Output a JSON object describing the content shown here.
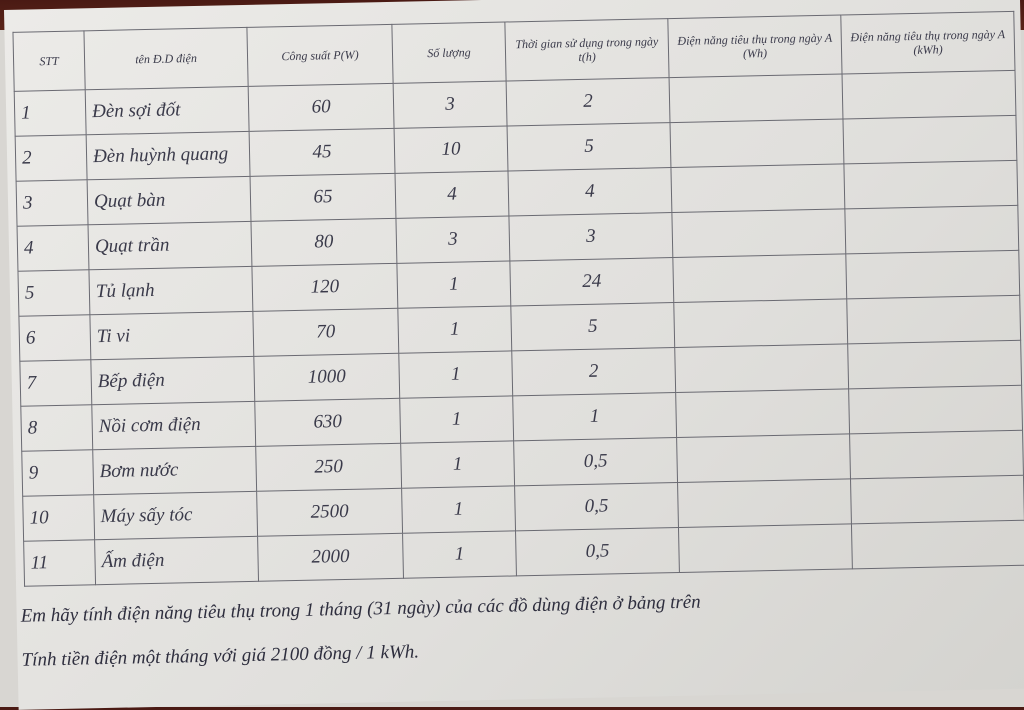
{
  "table": {
    "headers": [
      "STT",
      "tên Đ.D điện",
      "Công suất P(W)",
      "Số lượng",
      "Thời gian sử dụng trong ngày t(h)",
      "Điện năng tiêu thụ trong ngày A (Wh)",
      "Điện năng tiêu thụ trong ngày A (kWh)"
    ],
    "rows": [
      [
        "1",
        "Đèn sợi đốt",
        "60",
        "3",
        "2"
      ],
      [
        "2",
        "Đèn huỳnh quang",
        "45",
        "10",
        "5"
      ],
      [
        "3",
        "Quạt bàn",
        "65",
        "4",
        "4"
      ],
      [
        "4",
        "Quạt trần",
        "80",
        "3",
        "3"
      ],
      [
        "5",
        "Tủ lạnh",
        "120",
        "1",
        "24"
      ],
      [
        "6",
        "Ti vi",
        "70",
        "1",
        "5"
      ],
      [
        "7",
        "Bếp điện",
        "1000",
        "1",
        "2"
      ],
      [
        "8",
        "Nồi cơm điện",
        "630",
        "1",
        "1"
      ],
      [
        "9",
        "Bơm nước",
        "250",
        "1",
        "0,5"
      ],
      [
        "10",
        "Máy sấy tóc",
        "2500",
        "1",
        "0,5"
      ],
      [
        "11",
        "Ấm điện",
        "2000",
        "1",
        "0,5"
      ]
    ]
  },
  "questions": [
    "Em hãy tính điện năng tiêu thụ trong 1 tháng (31 ngày) của các đồ dùng điện ở bảng trên",
    "Tính tiền điện một tháng với giá 2100 đồng / 1 kWh."
  ]
}
